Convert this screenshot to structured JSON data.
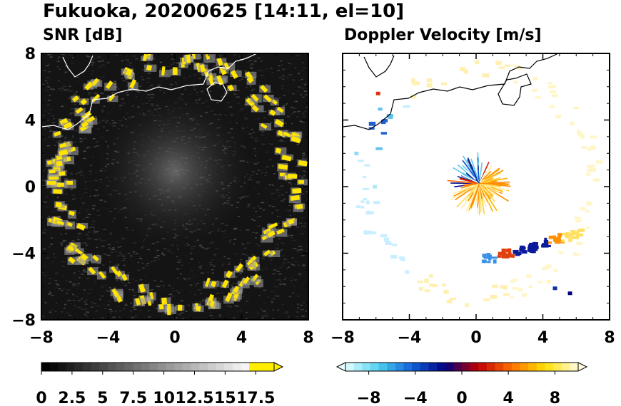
{
  "figure": {
    "title": "Fukuoka, 20200625 [14:11, el=10]"
  },
  "chart_data": [
    {
      "type": "heatmap",
      "title": "SNR [dB]",
      "xlim": [
        -8,
        8
      ],
      "ylim": [
        -8,
        8
      ],
      "xticks": [
        -8,
        -4,
        0,
        4,
        8
      ],
      "yticks": [
        8,
        4,
        0,
        -4,
        -8
      ],
      "grid": false,
      "background_color": "#141414",
      "strong_echo_color": "#ffe400",
      "echo_rings": [
        {
          "cx": 0,
          "cy": 0.3,
          "r": 7.0,
          "note": "ring of strong echoes"
        }
      ],
      "colorbar": {
        "ticks": [
          0,
          2.5,
          5,
          7.5,
          10,
          12.5,
          15,
          17.5
        ],
        "tick_labels": [
          "0",
          "2.5",
          "5",
          "7.5",
          "10",
          "12.5",
          "15",
          "17.5"
        ],
        "range": [
          0,
          19
        ],
        "extend": "max",
        "colors": [
          "#000000",
          "#ffffff",
          "#ffee00"
        ]
      }
    },
    {
      "type": "heatmap",
      "title": "Doppler Velocity [m/s]",
      "xlim": [
        -8,
        8
      ],
      "ylim": [
        -8,
        8
      ],
      "xticks": [
        -8,
        -4,
        0,
        4,
        8
      ],
      "yticks": [
        8,
        4,
        0,
        -4,
        -8
      ],
      "grid": false,
      "colorbar": {
        "ticks": [
          -8,
          -4,
          0,
          4,
          8
        ],
        "tick_labels": [
          "−8",
          "−4",
          "0",
          "4",
          "8"
        ],
        "range": [
          -10,
          10
        ],
        "extend": "both",
        "colors": [
          "#e6ffff",
          "#4fd0f0",
          "#1060d8",
          "#000080",
          "#c00000",
          "#ff7000",
          "#ffe000",
          "#fffbe0"
        ]
      }
    }
  ]
}
